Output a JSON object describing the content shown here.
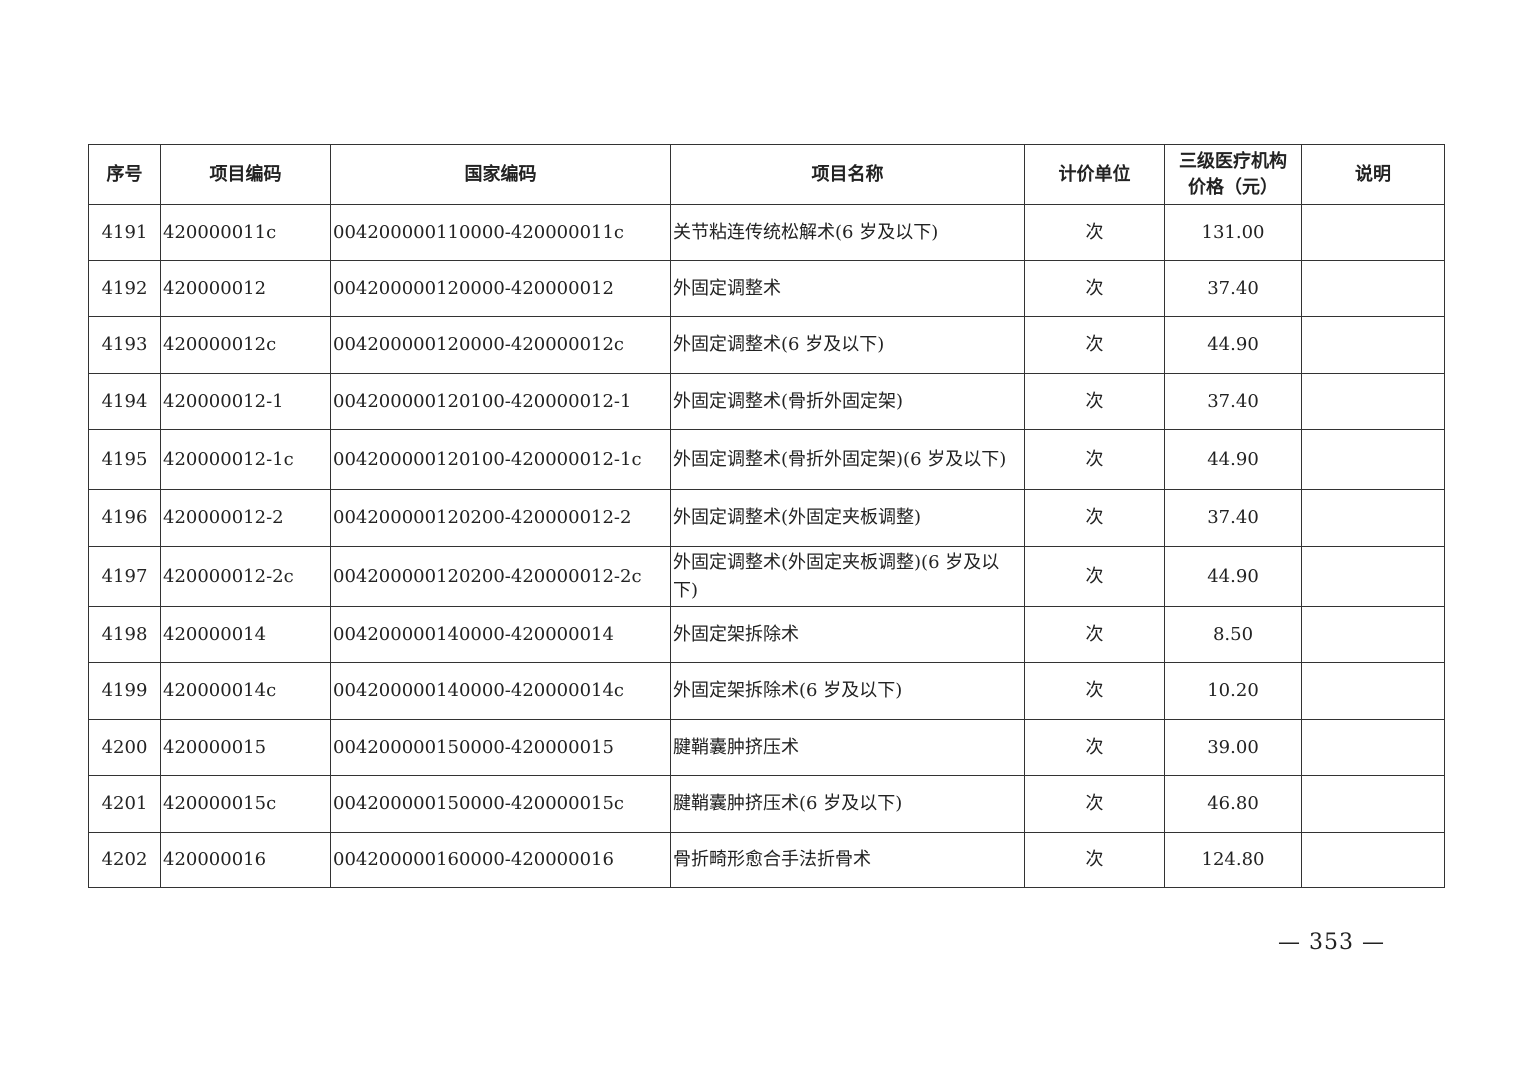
{
  "table": {
    "headers": [
      "序号",
      "项目编码",
      "国家编码",
      "项目名称",
      "计价单位",
      "三级医疗机构价格（元）",
      "说明"
    ],
    "header_price_line1": "三级医疗机构",
    "header_price_line2": "价格（元）",
    "rows": [
      {
        "no": "4191",
        "code": "420000011c",
        "national": "004200000110000-420000011c",
        "name": "关节粘连传统松解术(6 岁及以下)",
        "unit": "次",
        "price": "131.00",
        "note": ""
      },
      {
        "no": "4192",
        "code": "420000012",
        "national": "004200000120000-420000012",
        "name": "外固定调整术",
        "unit": "次",
        "price": "37.40",
        "note": ""
      },
      {
        "no": "4193",
        "code": "420000012c",
        "national": "004200000120000-420000012c",
        "name": "外固定调整术(6 岁及以下)",
        "unit": "次",
        "price": "44.90",
        "note": ""
      },
      {
        "no": "4194",
        "code": "420000012-1",
        "national": "004200000120100-420000012-1",
        "name": "外固定调整术(骨折外固定架)",
        "unit": "次",
        "price": "37.40",
        "note": ""
      },
      {
        "no": "4195",
        "code": "420000012-1c",
        "national": "004200000120100-420000012-1c",
        "name": "外固定调整术(骨折外固定架)(6 岁及以下)",
        "unit": "次",
        "price": "44.90",
        "note": ""
      },
      {
        "no": "4196",
        "code": "420000012-2",
        "national": "004200000120200-420000012-2",
        "name": "外固定调整术(外固定夹板调整)",
        "unit": "次",
        "price": "37.40",
        "note": ""
      },
      {
        "no": "4197",
        "code": "420000012-2c",
        "national": "004200000120200-420000012-2c",
        "name": "外固定调整术(外固定夹板调整)(6 岁及以下)",
        "unit": "次",
        "price": "44.90",
        "note": ""
      },
      {
        "no": "4198",
        "code": "420000014",
        "national": "004200000140000-420000014",
        "name": "外固定架拆除术",
        "unit": "次",
        "price": "8.50",
        "note": ""
      },
      {
        "no": "4199",
        "code": "420000014c",
        "national": "004200000140000-420000014c",
        "name": "外固定架拆除术(6 岁及以下)",
        "unit": "次",
        "price": "10.20",
        "note": ""
      },
      {
        "no": "4200",
        "code": "420000015",
        "national": "004200000150000-420000015",
        "name": "腱鞘囊肿挤压术",
        "unit": "次",
        "price": "39.00",
        "note": ""
      },
      {
        "no": "4201",
        "code": "420000015c",
        "national": "004200000150000-420000015c",
        "name": "腱鞘囊肿挤压术(6 岁及以下)",
        "unit": "次",
        "price": "46.80",
        "note": ""
      },
      {
        "no": "4202",
        "code": "420000016",
        "national": "004200000160000-420000016",
        "name": "骨折畸形愈合手法折骨术",
        "unit": "次",
        "price": "124.80",
        "note": ""
      }
    ]
  },
  "footer": {
    "page_number": "— 353 —"
  }
}
